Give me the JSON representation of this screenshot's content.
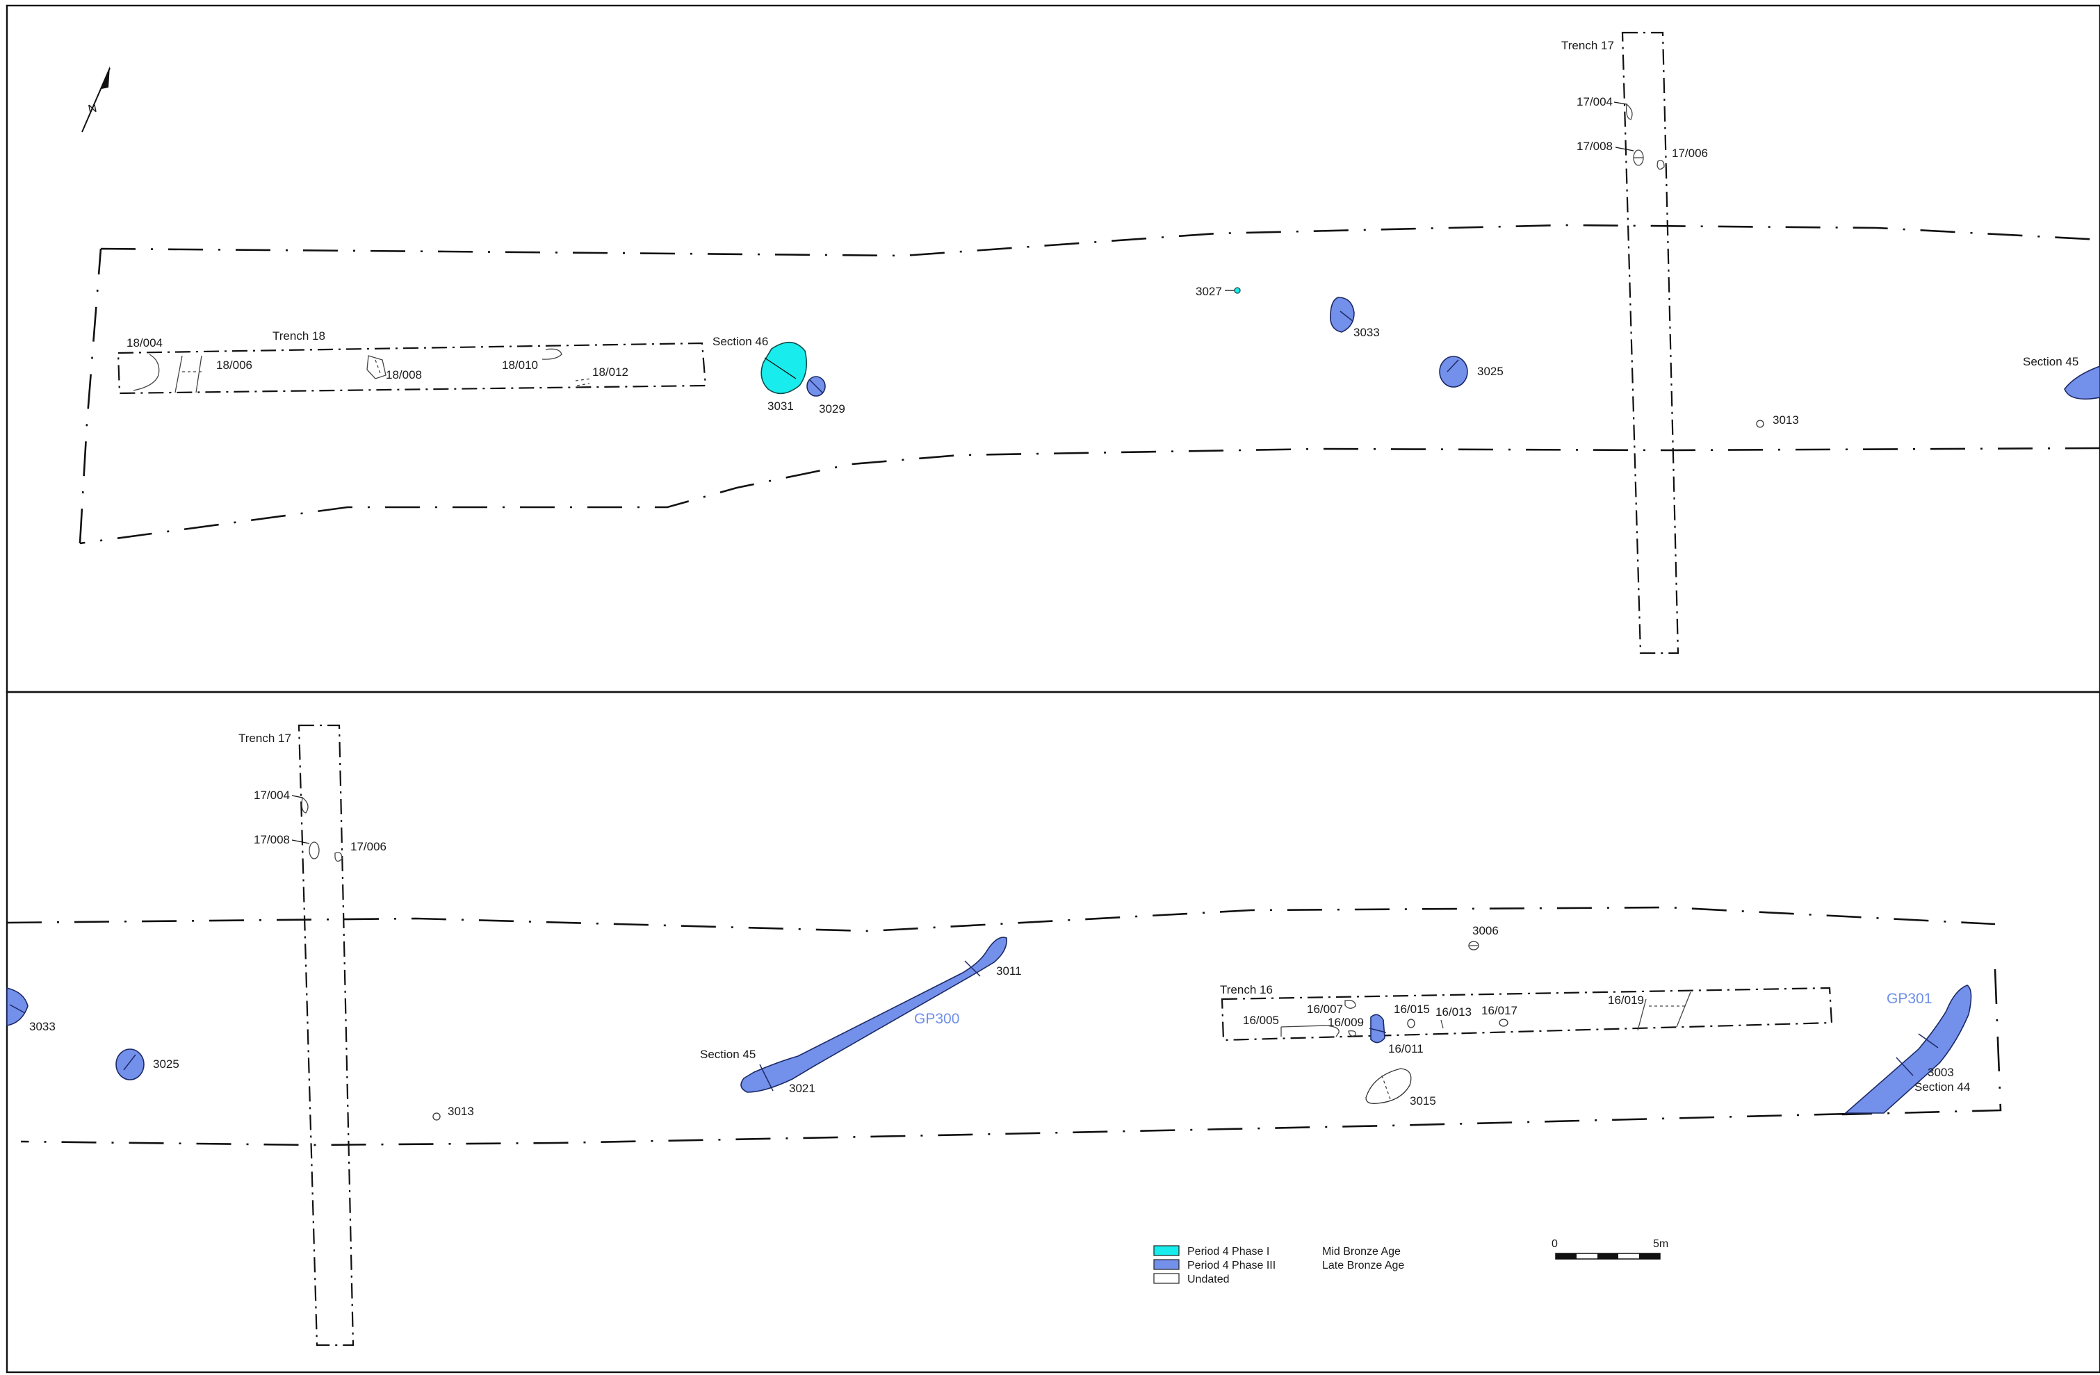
{
  "north": {
    "label": "N"
  },
  "top_panel": {
    "trench17": {
      "label": "Trench 17",
      "f1": "17/004",
      "f2": "17/008",
      "f3": "17/006"
    },
    "trench18": {
      "label": "Trench 18",
      "f1": "18/004",
      "f2": "18/006",
      "f3": "18/008",
      "f4": "18/010",
      "f5": "18/012"
    },
    "section46": "Section 46",
    "section45": "Section 45",
    "f3031": "3031",
    "f3029": "3029",
    "f3027": "3027",
    "f3033": "3033",
    "f3025": "3025",
    "f3013": "3013"
  },
  "bottom_panel": {
    "trench17": {
      "label": "Trench 17",
      "f1": "17/004",
      "f2": "17/008",
      "f3": "17/006"
    },
    "f3033": "3033",
    "f3025": "3025",
    "f3013": "3013",
    "section45": "Section 45",
    "f3021": "3021",
    "f3011": "3011",
    "gp300": "GP300",
    "f3006": "3006",
    "trench16": {
      "label": "Trench 16",
      "f005": "16/005",
      "f007": "16/007",
      "f009": "16/009",
      "f011": "16/011",
      "f013": "16/013",
      "f015": "16/015",
      "f017": "16/017",
      "f019": "16/019"
    },
    "f3015": "3015",
    "gp301": "GP301",
    "f3003": "3003",
    "section44": "Section 44"
  },
  "legend": {
    "items": [
      {
        "label": "Period 4 Phase I",
        "period": "Mid Bronze Age",
        "color": "#19ecec"
      },
      {
        "label": "Period 4 Phase III",
        "period": "Late Bronze Age",
        "color": "#7390ea"
      },
      {
        "label": "Undated",
        "period": "",
        "color": "#ffffff"
      }
    ]
  },
  "scale_bar": {
    "min_label": "0",
    "max_label": "5m"
  }
}
